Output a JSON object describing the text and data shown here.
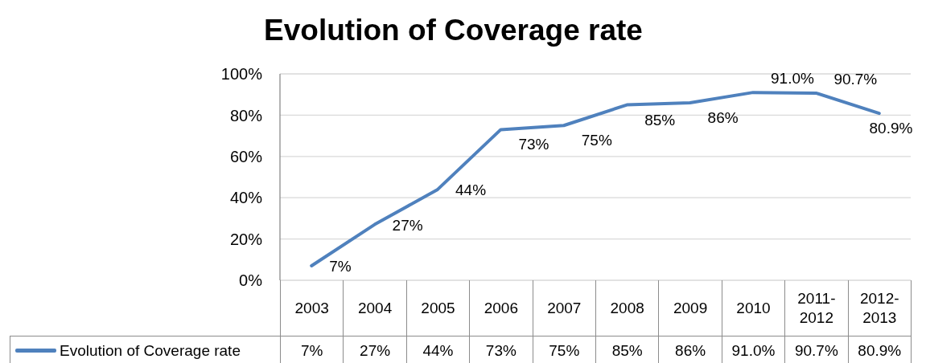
{
  "chart_data": {
    "type": "line",
    "title": "Evolution of Coverage rate",
    "categories": [
      "2003",
      "2004",
      "2005",
      "2006",
      "2007",
      "2008",
      "2009",
      "2010",
      "2011-2012",
      "2012-2013"
    ],
    "series": [
      {
        "name": "Evolution of Coverage rate",
        "color": "#4f81bd",
        "values": [
          7,
          27,
          44,
          73,
          75,
          85,
          86,
          91.0,
          90.7,
          80.9
        ],
        "value_labels": [
          "7%",
          "27%",
          "44%",
          "73%",
          "75%",
          "85%",
          "86%",
          "91.0%",
          "90.7%",
          "80.9%"
        ]
      }
    ],
    "ylim": [
      0,
      100
    ],
    "yticks": [
      {
        "value": 0,
        "label": "0%"
      },
      {
        "value": 20,
        "label": "20%"
      },
      {
        "value": 40,
        "label": "40%"
      },
      {
        "value": 60,
        "label": "60%"
      },
      {
        "value": 80,
        "label": "80%"
      },
      {
        "value": 100,
        "label": "100%"
      }
    ],
    "grid": "y",
    "legend": "bottom left",
    "marker": "none",
    "line_style": "solid"
  }
}
